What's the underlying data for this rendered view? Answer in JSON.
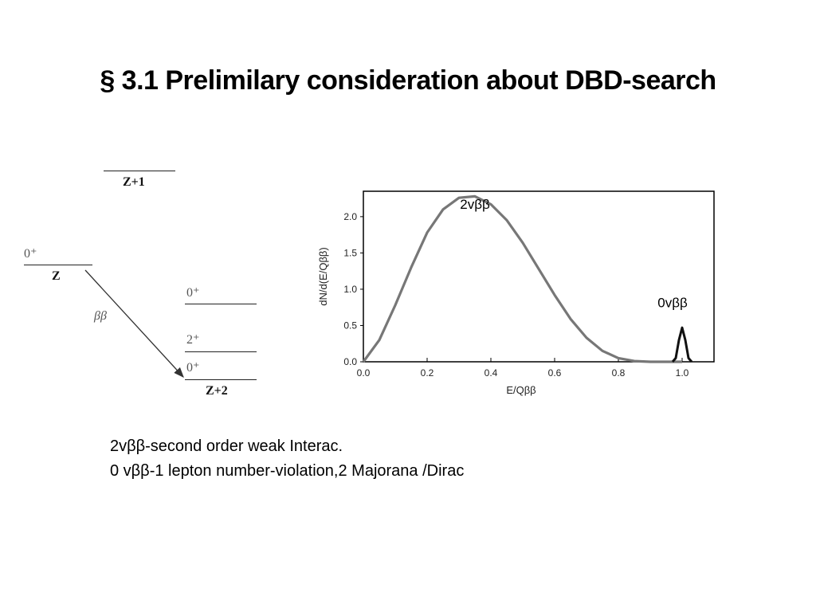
{
  "slide": {
    "title": "§ 3.1 Prelimilary consideration about DBD-search",
    "notes": [
      "2vββ-second order weak Interac.",
      "0 vββ-1 lepton number-violation,2 Majorana /Dirac"
    ]
  },
  "level_diagram": {
    "nucleus_z": "Z",
    "nucleus_z_plus_1": "Z+1",
    "nucleus_z_plus_2": "Z+2",
    "z_spin": "0⁺",
    "z2_level_upper": "0⁺",
    "z2_level_mid": "2⁺",
    "z2_level_ground": "0⁺",
    "transition_label": "ββ"
  },
  "chart_data": {
    "type": "line",
    "xlabel": "E/Qββ",
    "ylabel": "dN/d(E/Qββ)",
    "xlim": [
      0.0,
      1.1
    ],
    "ylim": [
      0.0,
      2.35
    ],
    "xticks": [
      "0.0",
      "0.2",
      "0.4",
      "0.6",
      "0.8",
      "1.0"
    ],
    "yticks": [
      "0.0",
      "0.5",
      "1.0",
      "1.5",
      "2.0"
    ],
    "grid": false,
    "series": [
      {
        "name": "2vββ",
        "x": [
          0.0,
          0.05,
          0.1,
          0.15,
          0.2,
          0.25,
          0.3,
          0.35,
          0.4,
          0.45,
          0.5,
          0.55,
          0.6,
          0.65,
          0.7,
          0.75,
          0.8,
          0.85,
          0.9,
          0.95,
          1.0
        ],
        "y": [
          0.0,
          0.3,
          0.78,
          1.3,
          1.78,
          2.1,
          2.26,
          2.28,
          2.17,
          1.95,
          1.64,
          1.28,
          0.92,
          0.59,
          0.33,
          0.15,
          0.05,
          0.01,
          0.0,
          0.0,
          0.0
        ]
      },
      {
        "name": "0vββ",
        "x": [
          0.97,
          0.98,
          0.99,
          1.0,
          1.01,
          1.02,
          1.03
        ],
        "y": [
          0.0,
          0.05,
          0.3,
          0.47,
          0.3,
          0.05,
          0.0
        ]
      }
    ]
  }
}
